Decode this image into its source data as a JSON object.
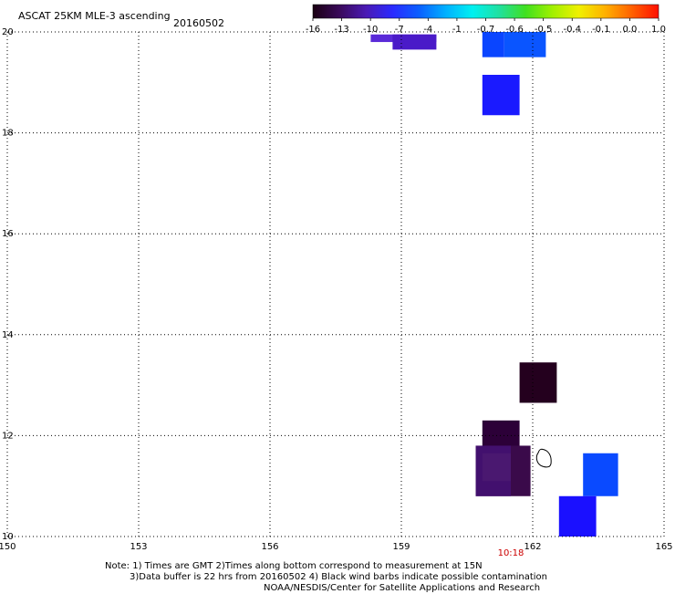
{
  "header": {
    "title": "ASCAT 25KM MLE-3 ascending",
    "date": "20160502"
  },
  "colorbar": {
    "tick_labels": [
      "-16",
      "-13",
      "-10",
      "-7",
      "-4",
      "-1",
      "-0.7",
      "-0.6",
      "-0.5",
      "-0.4",
      "-0.1",
      "0.0",
      "1.0"
    ],
    "gradient_colors": [
      "#1a0012",
      "#3a0a5a",
      "#4a1ab4",
      "#2a2aff",
      "#0a60ff",
      "#00b0ff",
      "#00f0f0",
      "#20e0a0",
      "#40e020",
      "#a0f000",
      "#f0f000",
      "#ffb000",
      "#ff6000",
      "#ff1000"
    ]
  },
  "map": {
    "lon_ticks": [
      "150",
      "153",
      "156",
      "159",
      "162",
      "165"
    ],
    "lat_ticks": [
      "20",
      "18",
      "16",
      "14",
      "12",
      "10"
    ],
    "lon_range": [
      150,
      165
    ],
    "lat_range": [
      10,
      20
    ],
    "time_label": "10:18",
    "time_label_lon": 161.5,
    "time_color": "#cc0000",
    "island_lon": 162.25,
    "island_lat": 11.55,
    "cells": [
      {
        "lon0": 158.3,
        "lon1": 159.8,
        "lat0": 19.8,
        "lat1": 19.95,
        "color": "#5a2ad8"
      },
      {
        "lon0": 158.8,
        "lon1": 159.8,
        "lat0": 19.65,
        "lat1": 19.95,
        "color": "#4a1ac8"
      },
      {
        "lon0": 161.35,
        "lon1": 162.3,
        "lat0": 19.5,
        "lat1": 20.0,
        "color": "#0a55ff"
      },
      {
        "lon0": 160.85,
        "lon1": 161.35,
        "lat0": 19.5,
        "lat1": 20.0,
        "color": "#0a45ff"
      },
      {
        "lon0": 160.85,
        "lon1": 161.7,
        "lat0": 18.35,
        "lat1": 19.15,
        "color": "#1a1aff"
      },
      {
        "lon0": 161.7,
        "lon1": 162.55,
        "lat0": 12.65,
        "lat1": 13.45,
        "color": "#24001e"
      },
      {
        "lon0": 160.85,
        "lon1": 161.7,
        "lat0": 11.45,
        "lat1": 12.3,
        "color": "#2c0038"
      },
      {
        "lon0": 160.7,
        "lon1": 161.95,
        "lat0": 10.8,
        "lat1": 11.8,
        "color": "#3a0a4a"
      },
      {
        "lon0": 160.7,
        "lon1": 161.5,
        "lat0": 10.8,
        "lat1": 11.8,
        "color": "#42106e"
      },
      {
        "lon0": 160.85,
        "lon1": 161.5,
        "lat0": 11.1,
        "lat1": 11.65,
        "color": "#4a1870"
      },
      {
        "lon0": 163.15,
        "lon1": 163.95,
        "lat0": 10.8,
        "lat1": 11.65,
        "color": "#0a4aff"
      },
      {
        "lon0": 162.6,
        "lon1": 163.45,
        "lat0": 10.0,
        "lat1": 10.8,
        "color": "#1a10ff"
      }
    ]
  },
  "footer": {
    "line1": "Note: 1) Times are GMT 2)Times along bottom correspond to measurement at 15N",
    "line2": "3)Data buffer is 22 hrs from 20160502 4) Black wind barbs indicate possible contamination",
    "line3": "NOAA/NESDIS/Center for Satellite Applications and Research"
  }
}
